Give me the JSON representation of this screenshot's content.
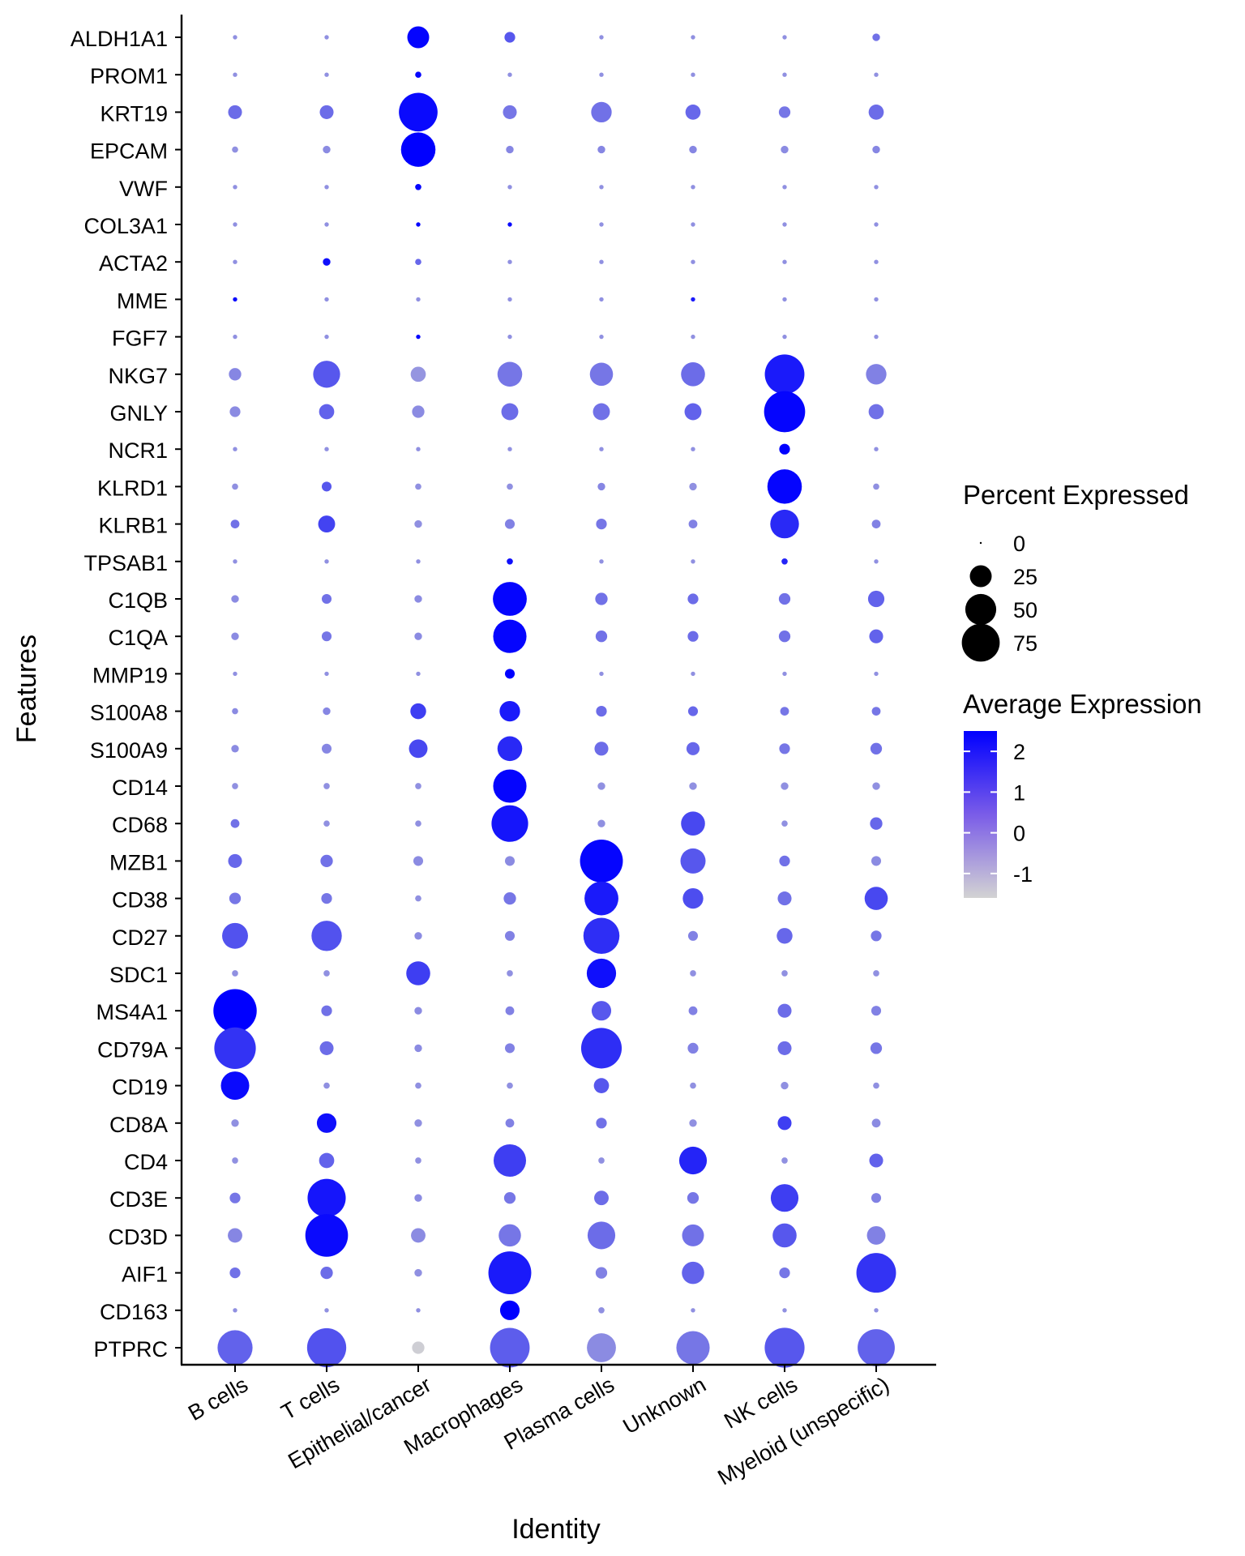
{
  "chart_data": {
    "type": "dot",
    "xlabel": "Identity",
    "ylabel": "Features",
    "categories": [
      "B cells",
      "T cells",
      "Epithelial/cancer",
      "Macrophages",
      "Plasma cells",
      "Unknown",
      "NK cells",
      "Myeloid (unspecific)"
    ],
    "features": [
      "ALDH1A1",
      "PROM1",
      "KRT19",
      "EPCAM",
      "VWF",
      "COL3A1",
      "ACTA2",
      "MME",
      "FGF7",
      "NKG7",
      "GNLY",
      "NCR1",
      "KLRD1",
      "KLRB1",
      "TPSAB1",
      "C1QB",
      "C1QA",
      "MMP19",
      "S100A8",
      "S100A9",
      "CD14",
      "CD68",
      "MZB1",
      "CD38",
      "CD27",
      "SDC1",
      "MS4A1",
      "CD79A",
      "CD19",
      "CD8A",
      "CD4",
      "CD3E",
      "CD3D",
      "AIF1",
      "CD163",
      "PTPRC"
    ],
    "percent_expressed": [
      [
        1,
        1,
        25,
        6,
        1,
        1,
        1,
        3
      ],
      [
        1,
        1,
        2,
        1,
        1,
        1,
        1,
        1
      ],
      [
        10,
        10,
        78,
        10,
        22,
        12,
        7,
        12
      ],
      [
        2,
        3,
        62,
        3,
        3,
        3,
        3,
        3
      ],
      [
        1,
        1,
        2,
        1,
        1,
        1,
        1,
        1
      ],
      [
        1,
        1,
        1,
        1,
        1,
        1,
        1,
        1
      ],
      [
        1,
        3,
        2,
        1,
        1,
        1,
        1,
        1
      ],
      [
        1,
        1,
        1,
        1,
        1,
        1,
        1,
        1
      ],
      [
        1,
        1,
        1,
        1,
        1,
        1,
        1,
        1
      ],
      [
        8,
        38,
        12,
        32,
        28,
        30,
        82,
        22
      ],
      [
        6,
        12,
        8,
        15,
        15,
        15,
        88,
        12
      ],
      [
        1,
        1,
        1,
        1,
        1,
        1,
        6,
        1
      ],
      [
        2,
        5,
        2,
        2,
        3,
        3,
        62,
        2
      ],
      [
        4,
        15,
        3,
        5,
        6,
        4,
        43,
        4
      ],
      [
        1,
        1,
        1,
        2,
        1,
        1,
        2,
        1
      ],
      [
        3,
        5,
        3,
        60,
        8,
        6,
        7,
        14
      ],
      [
        3,
        5,
        3,
        58,
        7,
        6,
        7,
        10
      ],
      [
        1,
        1,
        1,
        5,
        1,
        1,
        1,
        1
      ],
      [
        2,
        3,
        13,
        22,
        6,
        5,
        4,
        4
      ],
      [
        3,
        5,
        18,
        32,
        10,
        9,
        6,
        7
      ],
      [
        2,
        2,
        2,
        58,
        3,
        3,
        3,
        3
      ],
      [
        4,
        2,
        2,
        70,
        3,
        30,
        2,
        8
      ],
      [
        10,
        8,
        5,
        5,
        96,
        33,
        6,
        5
      ],
      [
        7,
        6,
        2,
        8,
        60,
        22,
        10,
        28
      ],
      [
        35,
        48,
        3,
        5,
        68,
        5,
        13,
        6
      ],
      [
        2,
        2,
        30,
        2,
        45,
        2,
        2,
        2
      ],
      [
        98,
        6,
        3,
        4,
        20,
        4,
        10,
        5
      ],
      [
        90,
        10,
        3,
        5,
        86,
        6,
        10,
        7
      ],
      [
        42,
        2,
        2,
        2,
        12,
        2,
        3,
        2
      ],
      [
        3,
        20,
        3,
        4,
        6,
        3,
        10,
        4
      ],
      [
        2,
        12,
        2,
        55,
        2,
        40,
        2,
        10
      ],
      [
        6,
        76,
        3,
        7,
        11,
        7,
        40,
        5
      ],
      [
        11,
        95,
        11,
        26,
        40,
        25,
        30,
        18
      ],
      [
        6,
        8,
        3,
        96,
        7,
        26,
        6,
        82
      ],
      [
        1,
        1,
        1,
        20,
        2,
        1,
        1,
        1
      ],
      [
        64,
        80,
        8,
        82,
        44,
        58,
        83,
        72
      ]
    ],
    "average_expression": [
      [
        -0.3,
        -0.3,
        2.4,
        0.8,
        -0.3,
        -0.3,
        -0.3,
        0.3
      ],
      [
        -0.3,
        -0.3,
        2.4,
        -0.3,
        -0.3,
        -0.3,
        -0.3,
        -0.3
      ],
      [
        0.4,
        0.4,
        2.3,
        0.2,
        0.3,
        0.5,
        0.2,
        0.4
      ],
      [
        -0.3,
        -0.2,
        2.5,
        -0.1,
        -0.1,
        -0.1,
        -0.2,
        -0.1
      ],
      [
        -0.3,
        -0.3,
        2.4,
        -0.3,
        -0.3,
        -0.3,
        -0.3,
        -0.3
      ],
      [
        -0.3,
        -0.3,
        2.4,
        2.3,
        -0.3,
        -0.3,
        -0.3,
        -0.3
      ],
      [
        -0.3,
        2.2,
        0.5,
        -0.3,
        -0.3,
        -0.3,
        -0.3,
        -0.3
      ],
      [
        2.3,
        -0.3,
        -0.3,
        -0.3,
        -0.3,
        2.0,
        -0.3,
        -0.3
      ],
      [
        -0.3,
        -0.3,
        2.4,
        -0.3,
        -0.3,
        -0.3,
        -0.3,
        -0.3
      ],
      [
        -0.1,
        0.8,
        -0.4,
        0.2,
        0.2,
        0.4,
        2.0,
        0.0
      ],
      [
        -0.2,
        0.6,
        -0.2,
        0.4,
        0.3,
        0.6,
        2.4,
        0.3
      ],
      [
        -0.3,
        -0.3,
        -0.3,
        -0.3,
        -0.3,
        -0.3,
        2.5,
        -0.3
      ],
      [
        -0.3,
        0.8,
        -0.3,
        -0.3,
        -0.1,
        -0.3,
        2.4,
        -0.3
      ],
      [
        0.3,
        1.2,
        -0.3,
        0.0,
        0.2,
        0.0,
        1.7,
        0.0
      ],
      [
        -0.3,
        -0.3,
        -0.3,
        2.2,
        -0.3,
        -0.3,
        1.8,
        -0.3
      ],
      [
        -0.2,
        0.3,
        -0.2,
        2.4,
        0.3,
        0.4,
        0.3,
        0.6
      ],
      [
        -0.2,
        0.2,
        -0.2,
        2.4,
        0.3,
        0.4,
        0.3,
        0.6
      ],
      [
        -0.3,
        -0.3,
        -0.3,
        2.5,
        -0.3,
        -0.3,
        -0.3,
        -0.3
      ],
      [
        -0.2,
        -0.1,
        1.3,
        2.0,
        0.4,
        0.5,
        0.2,
        0.2
      ],
      [
        -0.2,
        -0.1,
        1.1,
        1.7,
        0.4,
        0.5,
        0.2,
        0.3
      ],
      [
        -0.3,
        -0.3,
        -0.3,
        2.4,
        -0.3,
        -0.3,
        -0.3,
        -0.3
      ],
      [
        0.3,
        -0.3,
        -0.3,
        2.1,
        -0.3,
        1.1,
        -0.3,
        0.5
      ],
      [
        0.5,
        0.3,
        -0.2,
        -0.2,
        2.4,
        0.8,
        0.3,
        -0.2
      ],
      [
        0.2,
        0.2,
        -0.3,
        0.2,
        2.0,
        1.0,
        0.3,
        1.1
      ],
      [
        0.9,
        0.9,
        -0.2,
        0.0,
        1.6,
        0.0,
        0.5,
        0.2
      ],
      [
        -0.3,
        -0.3,
        1.3,
        -0.3,
        2.2,
        -0.3,
        -0.3,
        -0.3
      ],
      [
        2.5,
        0.3,
        -0.2,
        0.0,
        0.8,
        0.0,
        0.4,
        0.0
      ],
      [
        1.5,
        0.4,
        -0.2,
        0.0,
        1.6,
        0.0,
        0.4,
        0.2
      ],
      [
        2.3,
        -0.3,
        -0.3,
        -0.3,
        0.8,
        -0.3,
        -0.3,
        -0.3
      ],
      [
        -0.3,
        2.2,
        -0.3,
        0.0,
        0.3,
        -0.3,
        1.3,
        -0.2
      ],
      [
        -0.3,
        0.6,
        -0.3,
        1.3,
        -0.3,
        1.8,
        -0.3,
        0.6
      ],
      [
        0.2,
        2.1,
        -0.2,
        0.2,
        0.4,
        0.2,
        1.3,
        0.0
      ],
      [
        -0.1,
        2.3,
        -0.2,
        0.2,
        0.4,
        0.3,
        0.8,
        0.0
      ],
      [
        0.3,
        0.4,
        -0.3,
        2.0,
        0.0,
        0.6,
        0.2,
        1.5
      ],
      [
        -0.3,
        -0.3,
        -0.3,
        2.5,
        -0.3,
        -0.3,
        -0.3,
        -0.3
      ],
      [
        0.6,
        0.9,
        -1.5,
        0.7,
        -0.2,
        0.2,
        0.8,
        0.6
      ]
    ],
    "size_legend": {
      "title": "Percent Expressed",
      "labels": [
        "0",
        "25",
        "50",
        "75"
      ],
      "values": [
        0,
        25,
        50,
        75
      ]
    },
    "color_legend": {
      "title": "Average Expression",
      "labels": [
        "2",
        "1",
        "0",
        "-1"
      ],
      "values": [
        2,
        1,
        0,
        -1
      ],
      "range": [
        -1.6,
        2.5
      ],
      "low_color": "#d3d3d3",
      "high_color": "#0000ff"
    },
    "grid": false
  }
}
